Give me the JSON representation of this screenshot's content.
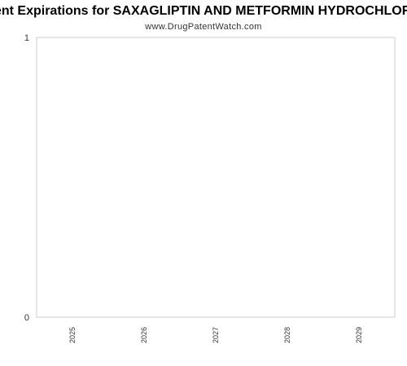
{
  "chart_data": {
    "type": "bar",
    "title": "Patent Expirations for SAXAGLIPTIN AND METFORMIN HYDROCHLORIDE",
    "subtitle": "www.DrugPatentWatch.com",
    "categories": [
      "2025",
      "2026",
      "2027",
      "2028",
      "2029"
    ],
    "values": [
      0,
      0,
      0,
      0,
      0
    ],
    "ylim": [
      0,
      1
    ],
    "yticks": [
      "0",
      "1"
    ],
    "xlabel": "",
    "ylabel": "",
    "grid": false,
    "colors": {
      "axis": "#cccccc",
      "plot_background": "#ffffff",
      "bar": "#4a90d9"
    }
  }
}
